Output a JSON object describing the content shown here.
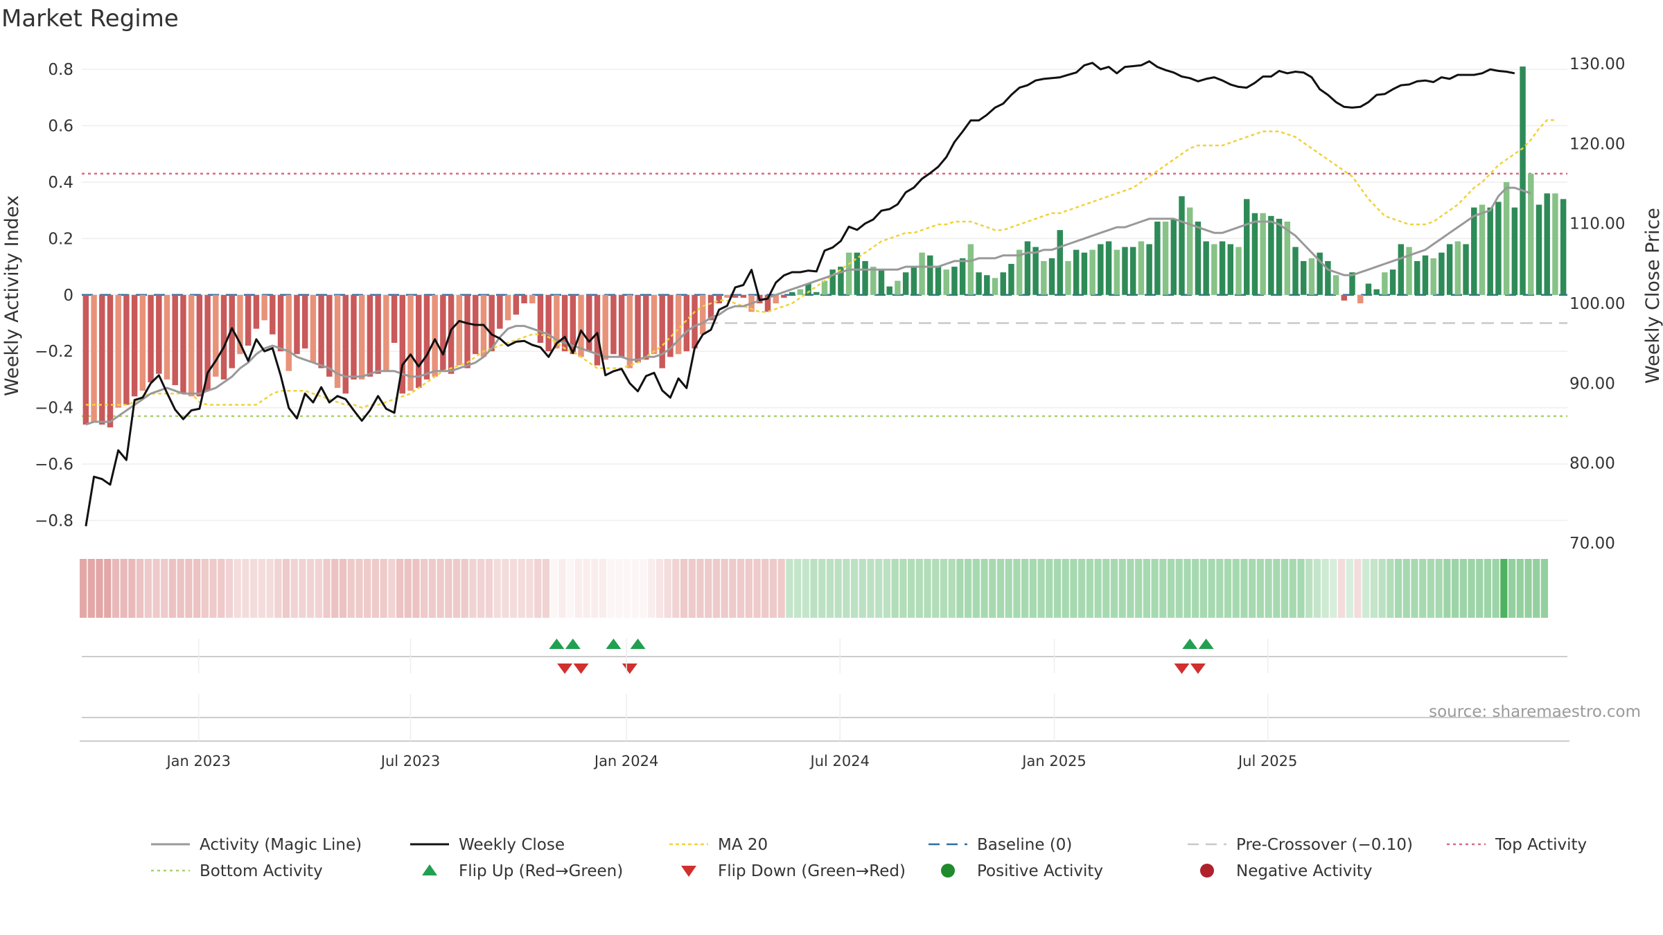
{
  "chart_data": {
    "type": "bar",
    "title": "Market Regime",
    "ylabel_left": "Weekly Activity Index",
    "ylabel_right": "Weekly Close Price",
    "source": "source: sharemaestro.com",
    "left_axis": {
      "ylim": [
        -0.88,
        0.82
      ],
      "ticks": [
        0.8,
        0.6,
        0.4,
        0.2,
        0,
        -0.2,
        -0.4,
        -0.6,
        -0.8
      ],
      "tick_labels": [
        "0.8",
        "0.6",
        "0.4",
        "0.2",
        "0",
        "−0.2",
        "−0.4",
        "−0.6",
        "−0.8"
      ]
    },
    "right_axis": {
      "ylim": [
        70,
        130
      ],
      "ticks": [
        130,
        120,
        110,
        100,
        90,
        80,
        70
      ],
      "tick_labels": [
        "130.00",
        "120.00",
        "110.00",
        "100.00",
        "90.00",
        "80.00",
        "70.00"
      ]
    },
    "x_axis": {
      "tick_weeks": [
        14.4,
        40.5,
        67.1,
        93.4,
        119.8,
        146.1
      ],
      "tick_labels": [
        "Jan 2023",
        "Jul 2023",
        "Jan 2024",
        "Jul 2024",
        "Jan 2025",
        "Jul 2025"
      ]
    },
    "reference_lines": {
      "baseline": 0,
      "pre_crossover": -0.1,
      "top_activity": 0.43,
      "bottom_activity": -0.43
    },
    "activity_bars": [
      -0.46,
      -0.45,
      -0.46,
      -0.47,
      -0.4,
      -0.39,
      -0.36,
      -0.34,
      -0.31,
      -0.28,
      -0.3,
      -0.32,
      -0.35,
      -0.36,
      -0.36,
      -0.34,
      -0.29,
      -0.3,
      -0.26,
      -0.21,
      -0.18,
      -0.12,
      -0.09,
      -0.14,
      -0.2,
      -0.27,
      -0.21,
      -0.19,
      -0.24,
      -0.26,
      -0.29,
      -0.33,
      -0.35,
      -0.3,
      -0.3,
      -0.29,
      -0.28,
      -0.27,
      -0.17,
      -0.35,
      -0.34,
      -0.33,
      -0.3,
      -0.29,
      -0.27,
      -0.28,
      -0.25,
      -0.26,
      -0.21,
      -0.22,
      -0.2,
      -0.12,
      -0.09,
      -0.07,
      -0.03,
      -0.03,
      -0.17,
      -0.2,
      -0.19,
      -0.2,
      -0.21,
      -0.22,
      -0.2,
      -0.25,
      -0.23,
      -0.21,
      -0.22,
      -0.26,
      -0.24,
      -0.23,
      -0.21,
      -0.26,
      -0.22,
      -0.21,
      -0.2,
      -0.19,
      -0.14,
      -0.09,
      -0.03,
      -0.01,
      -0.01,
      -0.01,
      -0.06,
      -0.03,
      -0.06,
      -0.03,
      -0.01,
      0.01,
      0.02,
      0.04,
      0.01,
      0.05,
      0.09,
      0.1,
      0.15,
      0.15,
      0.12,
      0.1,
      0.09,
      0.03,
      0.05,
      0.08,
      0.1,
      0.15,
      0.14,
      0.1,
      0.09,
      0.1,
      0.13,
      0.18,
      0.08,
      0.07,
      0.06,
      0.08,
      0.11,
      0.16,
      0.19,
      0.17,
      0.12,
      0.13,
      0.23,
      0.12,
      0.16,
      0.15,
      0.16,
      0.18,
      0.19,
      0.16,
      0.17,
      0.17,
      0.19,
      0.18,
      0.26,
      0.26,
      0.27,
      0.35,
      0.31,
      0.26,
      0.19,
      0.18,
      0.19,
      0.18,
      0.17,
      0.34,
      0.29,
      0.29,
      0.28,
      0.27,
      0.26,
      0.17,
      0.12,
      0.13,
      0.15,
      0.12,
      0.07,
      -0.02,
      0.08,
      -0.03,
      0.04,
      0.02,
      0.08,
      0.09,
      0.18,
      0.17,
      0.12,
      0.14,
      0.13,
      0.15,
      0.18,
      0.19,
      0.18,
      0.31,
      0.32,
      0.31,
      0.33,
      0.4,
      0.31,
      0.81,
      0.43,
      0.32,
      0.36,
      0.36,
      0.34
    ],
    "weekly_close": [
      72.1,
      78.3,
      78.0,
      77.3,
      81.6,
      80.4,
      87.9,
      88.2,
      90.0,
      91.0,
      88.8,
      86.7,
      85.5,
      86.6,
      86.8,
      91.3,
      92.8,
      94.5,
      96.9,
      95.0,
      92.8,
      95.5,
      94.0,
      94.4,
      91.0,
      86.9,
      85.6,
      88.7,
      87.6,
      89.5,
      87.6,
      88.4,
      88.0,
      86.6,
      85.3,
      86.6,
      88.4,
      86.8,
      86.3,
      92.3,
      93.6,
      92.1,
      93.5,
      95.5,
      93.6,
      96.7,
      97.8,
      97.5,
      97.3,
      97.3,
      96.1,
      95.6,
      94.7,
      95.2,
      95.3,
      94.8,
      94.5,
      93.3,
      95.0,
      95.8,
      93.8,
      96.6,
      95.2,
      96.3,
      91.0,
      91.5,
      91.8,
      90.0,
      89.0,
      90.9,
      91.3,
      89.1,
      88.2,
      90.6,
      89.4,
      94.4,
      96.1,
      96.7,
      99.2,
      99.7,
      102.0,
      102.3,
      104.2,
      100.4,
      100.6,
      102.6,
      103.5,
      103.9,
      103.9,
      104.1,
      104.0,
      106.6,
      107.0,
      107.8,
      109.6,
      109.2,
      110.0,
      110.5,
      111.6,
      111.8,
      112.4,
      113.9,
      114.5,
      115.6,
      116.3,
      117.1,
      118.3,
      120.2,
      121.5,
      122.9,
      122.9,
      123.6,
      124.5,
      125.0,
      126.1,
      127.0,
      127.3,
      127.9,
      128.1,
      128.2,
      128.3,
      128.6,
      128.9,
      129.8,
      130.1,
      129.3,
      129.6,
      128.8,
      129.6,
      129.7,
      129.8,
      130.3,
      129.6,
      129.2,
      128.9,
      128.4,
      128.2,
      127.8,
      128.1,
      128.3,
      127.9,
      127.4,
      127.1,
      127.0,
      127.6,
      128.4,
      128.4,
      129.1,
      128.8,
      129.0,
      128.9,
      128.3,
      126.8,
      126.1,
      125.2,
      124.6,
      124.5,
      124.6,
      125.2,
      126.1,
      126.2,
      126.8,
      127.3,
      127.4,
      127.8,
      127.9,
      127.7,
      128.3,
      128.1,
      128.6,
      128.6,
      128.6,
      128.8,
      129.3,
      129.1,
      129.0,
      128.8
    ],
    "activity_magic_line": [
      -0.46,
      -0.45,
      -0.45,
      -0.45,
      -0.43,
      -0.41,
      -0.39,
      -0.37,
      -0.35,
      -0.34,
      -0.33,
      -0.34,
      -0.35,
      -0.35,
      -0.35,
      -0.34,
      -0.33,
      -0.31,
      -0.29,
      -0.26,
      -0.24,
      -0.21,
      -0.19,
      -0.18,
      -0.19,
      -0.2,
      -0.22,
      -0.23,
      -0.24,
      -0.25,
      -0.26,
      -0.28,
      -0.29,
      -0.29,
      -0.29,
      -0.28,
      -0.27,
      -0.27,
      -0.27,
      -0.28,
      -0.29,
      -0.29,
      -0.28,
      -0.27,
      -0.27,
      -0.27,
      -0.26,
      -0.25,
      -0.24,
      -0.22,
      -0.19,
      -0.15,
      -0.12,
      -0.11,
      -0.11,
      -0.12,
      -0.13,
      -0.14,
      -0.16,
      -0.17,
      -0.18,
      -0.19,
      -0.2,
      -0.21,
      -0.22,
      -0.22,
      -0.22,
      -0.23,
      -0.23,
      -0.22,
      -0.22,
      -0.21,
      -0.19,
      -0.16,
      -0.13,
      -0.11,
      -0.1,
      -0.08,
      -0.07,
      -0.05,
      -0.04,
      -0.04,
      -0.03,
      -0.02,
      -0.01,
      0.0,
      0.01,
      0.02,
      0.03,
      0.04,
      0.05,
      0.06,
      0.07,
      0.08,
      0.09,
      0.09,
      0.09,
      0.09,
      0.09,
      0.09,
      0.09,
      0.1,
      0.1,
      0.1,
      0.1,
      0.1,
      0.11,
      0.12,
      0.12,
      0.12,
      0.13,
      0.13,
      0.13,
      0.14,
      0.14,
      0.14,
      0.15,
      0.15,
      0.16,
      0.16,
      0.17,
      0.18,
      0.19,
      0.2,
      0.21,
      0.22,
      0.23,
      0.24,
      0.24,
      0.25,
      0.26,
      0.27,
      0.27,
      0.27,
      0.27,
      0.26,
      0.25,
      0.24,
      0.23,
      0.22,
      0.22,
      0.23,
      0.24,
      0.25,
      0.26,
      0.26,
      0.26,
      0.25,
      0.23,
      0.21,
      0.18,
      0.15,
      0.12,
      0.09,
      0.08,
      0.07,
      0.07,
      0.08,
      0.09,
      0.1,
      0.11,
      0.12,
      0.13,
      0.14,
      0.15,
      0.16,
      0.18,
      0.2,
      0.22,
      0.24,
      0.26,
      0.28,
      0.29,
      0.3,
      0.35,
      0.38,
      0.38,
      0.37,
      0.36
    ],
    "ma20": [
      -0.39,
      -0.39,
      -0.39,
      -0.39,
      -0.39,
      -0.39,
      -0.38,
      -0.36,
      -0.35,
      -0.35,
      -0.35,
      -0.35,
      -0.35,
      -0.35,
      -0.38,
      -0.39,
      -0.39,
      -0.39,
      -0.39,
      -0.39,
      -0.39,
      -0.39,
      -0.37,
      -0.35,
      -0.34,
      -0.34,
      -0.34,
      -0.34,
      -0.35,
      -0.36,
      -0.37,
      -0.38,
      -0.39,
      -0.39,
      -0.4,
      -0.39,
      -0.39,
      -0.38,
      -0.37,
      -0.36,
      -0.35,
      -0.33,
      -0.31,
      -0.29,
      -0.27,
      -0.26,
      -0.25,
      -0.24,
      -0.22,
      -0.2,
      -0.19,
      -0.18,
      -0.17,
      -0.16,
      -0.15,
      -0.14,
      -0.14,
      -0.15,
      -0.17,
      -0.19,
      -0.2,
      -0.22,
      -0.24,
      -0.26,
      -0.26,
      -0.26,
      -0.26,
      -0.25,
      -0.24,
      -0.22,
      -0.2,
      -0.18,
      -0.15,
      -0.12,
      -0.09,
      -0.06,
      -0.04,
      -0.03,
      -0.02,
      -0.02,
      -0.03,
      -0.04,
      -0.05,
      -0.06,
      -0.06,
      -0.05,
      -0.04,
      -0.03,
      -0.01,
      0.01,
      0.03,
      0.05,
      0.07,
      0.09,
      0.11,
      0.13,
      0.15,
      0.17,
      0.19,
      0.2,
      0.21,
      0.22,
      0.22,
      0.23,
      0.24,
      0.25,
      0.25,
      0.26,
      0.26,
      0.26,
      0.25,
      0.24,
      0.23,
      0.23,
      0.24,
      0.25,
      0.26,
      0.27,
      0.28,
      0.29,
      0.29,
      0.3,
      0.31,
      0.32,
      0.33,
      0.34,
      0.35,
      0.36,
      0.37,
      0.38,
      0.4,
      0.42,
      0.44,
      0.46,
      0.48,
      0.5,
      0.52,
      0.53,
      0.53,
      0.53,
      0.53,
      0.54,
      0.55,
      0.56,
      0.57,
      0.58,
      0.58,
      0.58,
      0.57,
      0.56,
      0.54,
      0.52,
      0.5,
      0.48,
      0.46,
      0.44,
      0.42,
      0.38,
      0.34,
      0.31,
      0.28,
      0.27,
      0.26,
      0.25,
      0.25,
      0.25,
      0.26,
      0.28,
      0.3,
      0.32,
      0.35,
      0.38,
      0.4,
      0.43,
      0.46,
      0.48,
      0.5,
      0.52,
      0.55,
      0.59,
      0.62,
      0.62
    ],
    "flip_up_weeks": [
      58,
      60,
      65,
      68,
      136,
      138
    ],
    "flip_down_weeks": [
      59,
      61,
      67,
      135,
      137
    ],
    "top_strip_cells": [
      0.5,
      0.5,
      0.5,
      0.5,
      0.4,
      0.4,
      0.4,
      0.35,
      0.3,
      0.3,
      0.3,
      0.35,
      0.35,
      0.35,
      0.35,
      0.3,
      0.3,
      0.3,
      0.25,
      0.2,
      0.2,
      0.2,
      0.2,
      0.2,
      0.25,
      0.3,
      0.25,
      0.25,
      0.25,
      0.25,
      0.3,
      0.35,
      0.35,
      0.3,
      0.3,
      0.3,
      0.3,
      0.3,
      0.25,
      0.35,
      0.35,
      0.35,
      0.3,
      0.3,
      0.3,
      0.3,
      0.3,
      0.3,
      0.25,
      0.25,
      0.25,
      0.2,
      0.2,
      0.2,
      0.2,
      0.2,
      0.25,
      0.25,
      0.05,
      0.1,
      0.05,
      0.1,
      0.1,
      0.1,
      0.1,
      0.05,
      0.05,
      0.05,
      0.05,
      0.05,
      0.1,
      0.15,
      0.2,
      0.25,
      0.3,
      0.3,
      0.3,
      0.3,
      0.3,
      0.3,
      0.3,
      0.3,
      0.3,
      0.3,
      0.3,
      0.3,
      0.3,
      0.3,
      0.3,
      0.3,
      0.35,
      0.35,
      0.35,
      0.35,
      0.35,
      0.35,
      0.35,
      0.35,
      0.35,
      0.35,
      0.4,
      0.4,
      0.4,
      0.4,
      0.4,
      0.4,
      0.4,
      0.4,
      0.45,
      0.45,
      0.45,
      0.45,
      0.45,
      0.45,
      0.45,
      0.45,
      0.45,
      0.45,
      0.45,
      0.45,
      0.45,
      0.45,
      0.45,
      0.45,
      0.45,
      0.45,
      0.45,
      0.45,
      0.45,
      0.45,
      0.45,
      0.45,
      0.45,
      0.45,
      0.45,
      0.45,
      0.45,
      0.45,
      0.45,
      0.45,
      0.45,
      0.45,
      0.45,
      0.45,
      0.45,
      0.45,
      0.45,
      0.45,
      0.45,
      0.45,
      0.45,
      0.35,
      0.3,
      0.25,
      0.2,
      0.2,
      0.2,
      0.2,
      0.25,
      0.3,
      0.35,
      0.4,
      0.45,
      0.45,
      0.45,
      0.45,
      0.45,
      0.45,
      0.5,
      0.5,
      0.5,
      0.5,
      0.5,
      0.5,
      0.5,
      0.9,
      0.55,
      0.55,
      0.55,
      0.55,
      0.55
    ],
    "colors": {
      "red_dark": "#c9595a",
      "red_light": "#e8927a",
      "green_dark": "#2e8b57",
      "green_light": "#87c287",
      "magic_line": "#999999",
      "close": "#111111",
      "ma20": "#f0d23a",
      "baseline": "#2b6fa6",
      "pre_crossover": "#c8c8c8",
      "top_activity": "#d86a83",
      "bottom_activity": "#a9d06b",
      "flip_up": "#20a050",
      "flip_down": "#d0302f",
      "positive": "#1f8a2e",
      "negative": "#b0212c"
    },
    "legend": [
      {
        "label": "Activity (Magic Line)",
        "style": "solid-gray"
      },
      {
        "label": "Weekly Close",
        "style": "solid-black"
      },
      {
        "label": "MA 20",
        "style": "dotted-yellow"
      },
      {
        "label": "Baseline (0)",
        "style": "dashed-blue"
      },
      {
        "label": "Pre-Crossover (−0.10)",
        "style": "dashed-gray"
      },
      {
        "label": "Top Activity",
        "style": "dotted-pink"
      },
      {
        "label": "Bottom Activity",
        "style": "dotted-green"
      },
      {
        "label": "Flip Up (Red→Green)",
        "style": "triangle-up"
      },
      {
        "label": "Flip Down (Green→Red)",
        "style": "triangle-down"
      },
      {
        "label": "Positive Activity",
        "style": "dot-green"
      },
      {
        "label": "Negative Activity",
        "style": "dot-red"
      }
    ]
  }
}
